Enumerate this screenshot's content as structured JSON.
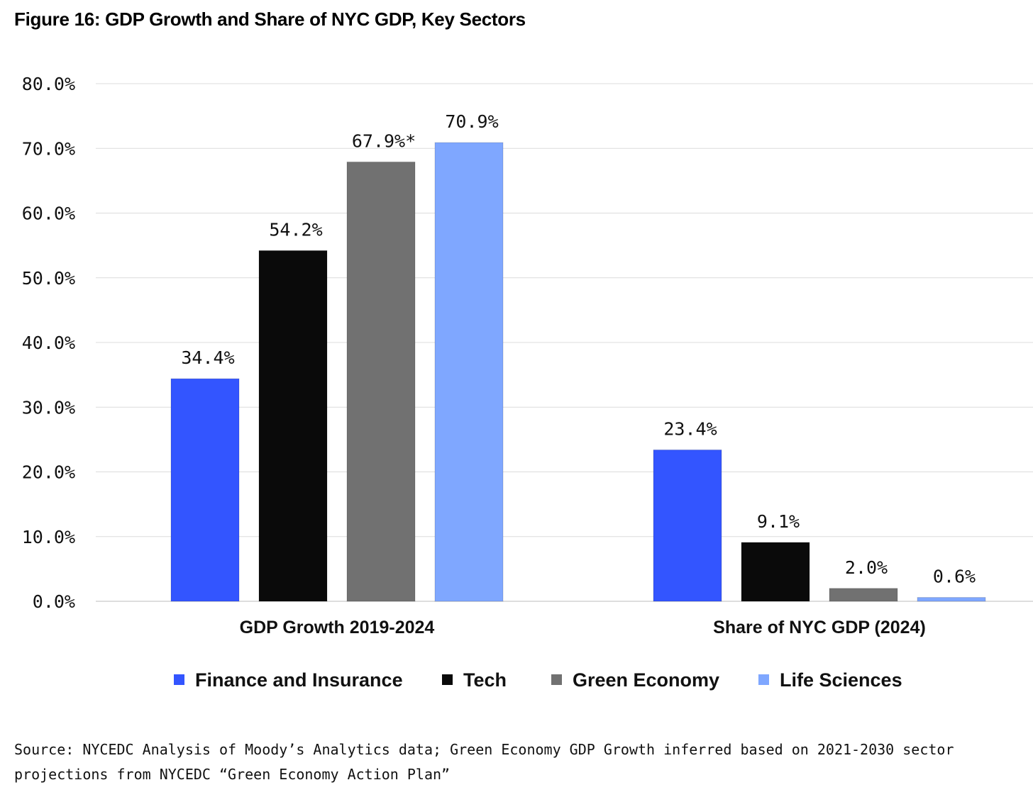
{
  "chart_data": {
    "type": "bar",
    "title": "Figure 16: GDP Growth and Share of NYC GDP, Key Sectors",
    "categories": [
      "GDP Growth 2019-2024",
      "Share of NYC GDP (2024)"
    ],
    "series": [
      {
        "name": "Finance and Insurance",
        "color": "#3355ff",
        "values": [
          34.4,
          23.4
        ],
        "labels": [
          "34.4%",
          "23.4%"
        ]
      },
      {
        "name": "Tech",
        "color": "#0a0a0a",
        "values": [
          54.2,
          9.1
        ],
        "labels": [
          "54.2%",
          "9.1%"
        ]
      },
      {
        "name": "Green Economy",
        "color": "#717171",
        "values": [
          67.9,
          2.0
        ],
        "labels": [
          "67.9%*",
          "2.0%"
        ]
      },
      {
        "name": "Life Sciences",
        "color": "#7fa7ff",
        "values": [
          70.9,
          0.6
        ],
        "labels": [
          "70.9%",
          "0.6%"
        ]
      }
    ],
    "yticks": [
      "0.0%",
      "10.0%",
      "20.0%",
      "30.0%",
      "40.0%",
      "50.0%",
      "60.0%",
      "70.0%",
      "80.0%"
    ],
    "ylim": [
      0,
      80
    ],
    "grid": true,
    "legend": "bottom-center",
    "xlabel": "",
    "ylabel": ""
  },
  "source": "Source: NYCEDC Analysis of Moody’s Analytics data; Green Economy GDP Growth inferred based on 2021-2030 sector projections from NYCEDC “Green Economy Action Plan”"
}
